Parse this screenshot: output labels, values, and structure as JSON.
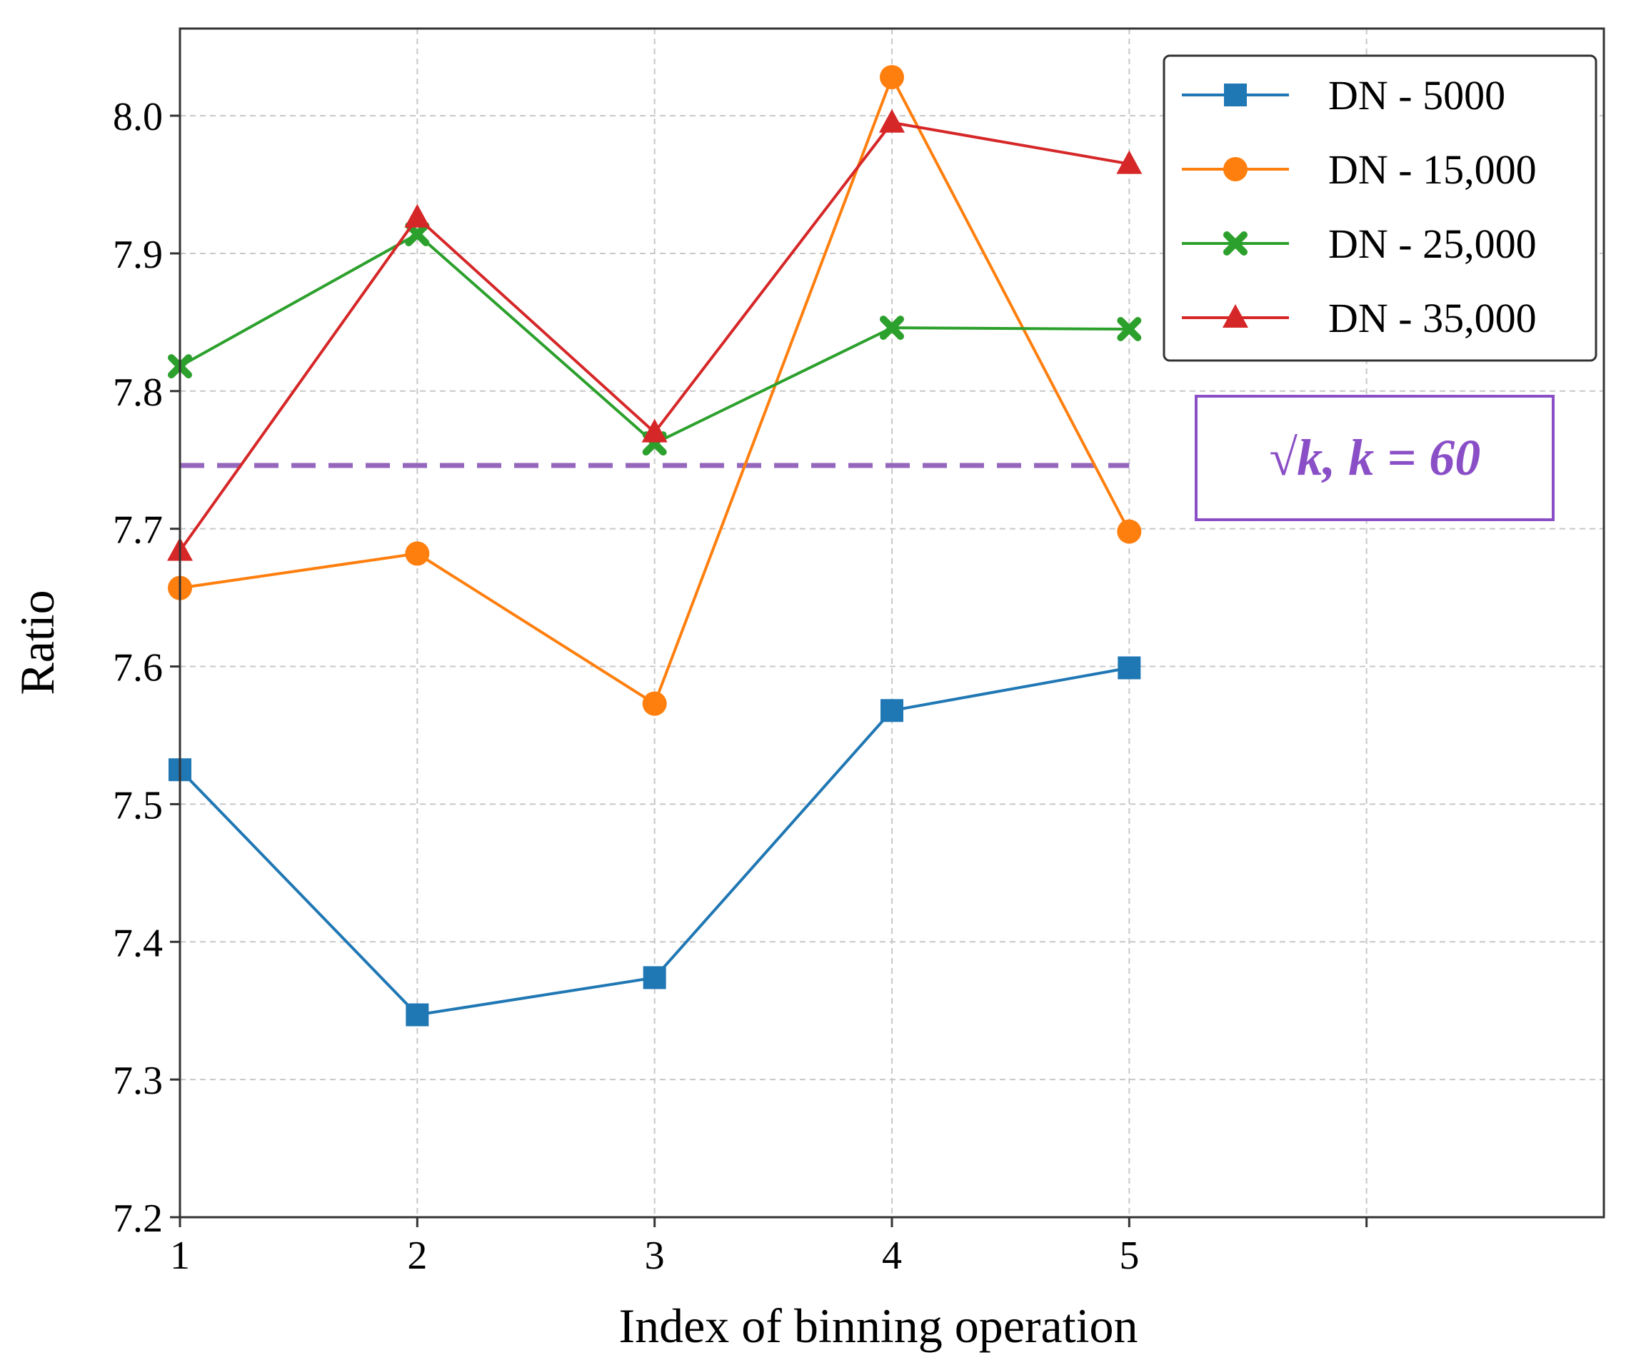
{
  "chart_data": {
    "type": "line",
    "title": "",
    "xlabel": "Index of binning operation",
    "ylabel": "Ratio",
    "xlim": [
      1,
      7
    ],
    "ylim": [
      7.2,
      8.0633
    ],
    "x_ticks": [
      1,
      2,
      3,
      4,
      5,
      6
    ],
    "x_tick_labels": [
      "1",
      "2",
      "3",
      "4",
      "5",
      ""
    ],
    "y_ticks": [
      7.2,
      7.3,
      7.4,
      7.5,
      7.6,
      7.7,
      7.8,
      7.9,
      8.0
    ],
    "y_tick_labels": [
      "7.2",
      "7.3",
      "7.4",
      "7.5",
      "7.6",
      "7.7",
      "7.8",
      "7.9",
      "8.0"
    ],
    "grid": true,
    "legend_position": "top-right",
    "x": [
      1,
      2,
      3,
      4,
      5
    ],
    "series": [
      {
        "name": "DN - 5000",
        "color": "#1f77b4",
        "marker": "square",
        "values": [
          7.525,
          7.347,
          7.374,
          7.568,
          7.599
        ]
      },
      {
        "name": "DN - 15,000",
        "color": "#ff7f0e",
        "marker": "circle",
        "values": [
          7.657,
          7.682,
          7.573,
          8.028,
          7.698
        ]
      },
      {
        "name": "DN - 25,000",
        "color": "#2ca02c",
        "marker": "x",
        "values": [
          7.818,
          7.914,
          7.762,
          7.846,
          7.845
        ]
      },
      {
        "name": "DN - 35,000",
        "color": "#d62728",
        "marker": "triangle",
        "values": [
          7.684,
          7.926,
          7.77,
          7.995,
          7.965
        ]
      }
    ],
    "reference_line": {
      "y": 7.746,
      "x_range": [
        1,
        5
      ],
      "color": "#9467bd",
      "style": "dashed"
    },
    "annotation": {
      "text": "√k, k = 60",
      "color": "#8a4fc6"
    }
  }
}
